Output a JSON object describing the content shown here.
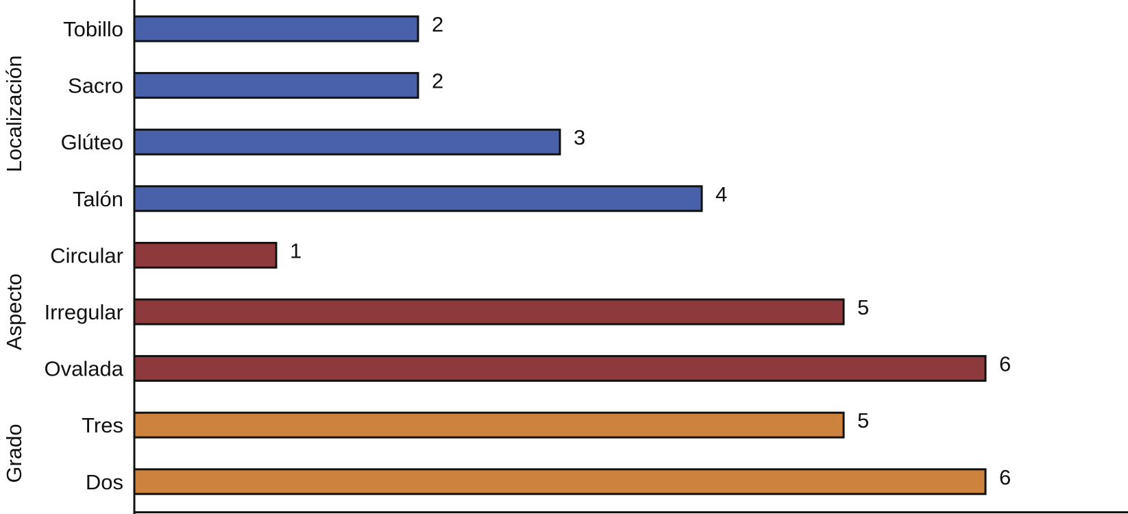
{
  "chart_data": {
    "type": "bar",
    "orientation": "horizontal",
    "title": "",
    "xlabel": "",
    "ylabel": "",
    "xlim": [
      0,
      6.5
    ],
    "grid": false,
    "legend": "none",
    "groups": [
      {
        "name": "Localización",
        "color": "#4961a8",
        "items": [
          {
            "label": "Tobillo",
            "value": 2
          },
          {
            "label": "Sacro",
            "value": 2
          },
          {
            "label": "Glúteo",
            "value": 3
          },
          {
            "label": "Talón",
            "value": 4
          }
        ]
      },
      {
        "name": "Aspecto",
        "color": "#8e3a3c",
        "items": [
          {
            "label": "Circular",
            "value": 1
          },
          {
            "label": "Irregular",
            "value": 5
          },
          {
            "label": "Ovalada",
            "value": 6
          }
        ]
      },
      {
        "name": "Grado",
        "color": "#cd833e",
        "items": [
          {
            "label": "Tres",
            "value": 5
          },
          {
            "label": "Dos",
            "value": 6
          }
        ]
      }
    ]
  }
}
